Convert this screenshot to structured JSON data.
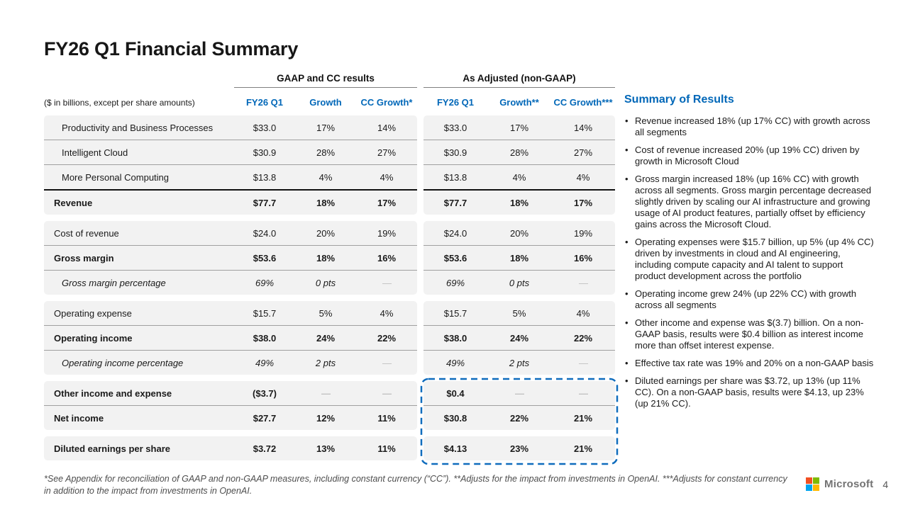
{
  "slide": {
    "title": "FY26 Q1 Financial Summary",
    "page_number": "4",
    "logo_text": "Microsoft",
    "footnote": "*See Appendix for reconciliation of GAAP and non-GAAP measures, including constant currency (“CC”). **Adjusts for the impact from investments in OpenAI. ***Adjusts for constant currency in addition to the impact from investments in OpenAI."
  },
  "colors": {
    "accent_blue": "#0067b8",
    "highlight_dashed_box": "#0f6cbd",
    "row_background": "#f2f2f2",
    "logo_red": "#f25022",
    "logo_green": "#7fba00",
    "logo_blue": "#00a4ef",
    "logo_yellow": "#ffb900"
  },
  "table": {
    "caption": "($ in billions, except per share amounts)",
    "group_headers": [
      "GAAP and CC results",
      "As Adjusted (non-GAAP)"
    ],
    "gaap_columns": [
      "FY26 Q1",
      "Growth",
      "CC Growth*"
    ],
    "nongaap_columns": [
      "FY26 Q1",
      "Growth**",
      "CC Growth***"
    ],
    "groups": [
      {
        "rows": [
          {
            "label": "Productivity and Business Processes",
            "indent": true,
            "gaap": [
              "$33.0",
              "17%",
              "14%"
            ],
            "nongaap": [
              "$33.0",
              "17%",
              "14%"
            ]
          },
          {
            "label": "Intelligent Cloud",
            "indent": true,
            "gaap": [
              "$30.9",
              "28%",
              "27%"
            ],
            "nongaap": [
              "$30.9",
              "28%",
              "27%"
            ]
          },
          {
            "label": "More Personal Computing",
            "indent": true,
            "gaap": [
              "$13.8",
              "4%",
              "4%"
            ],
            "nongaap": [
              "$13.8",
              "4%",
              "4%"
            ]
          },
          {
            "label": "Revenue",
            "bold": true,
            "heavy_top": true,
            "gaap": [
              "$77.7",
              "18%",
              "17%"
            ],
            "nongaap": [
              "$77.7",
              "18%",
              "17%"
            ]
          }
        ]
      },
      {
        "rows": [
          {
            "label": "Cost of revenue",
            "gaap": [
              "$24.0",
              "20%",
              "19%"
            ],
            "nongaap": [
              "$24.0",
              "20%",
              "19%"
            ]
          },
          {
            "label": "Gross margin",
            "bold": true,
            "gaap": [
              "$53.6",
              "18%",
              "16%"
            ],
            "nongaap": [
              "$53.6",
              "18%",
              "16%"
            ]
          },
          {
            "label": "Gross margin percentage",
            "italic": true,
            "indent": true,
            "gaap": [
              "69%",
              "0 pts",
              "—"
            ],
            "nongaap": [
              "69%",
              "0 pts",
              "—"
            ]
          }
        ]
      },
      {
        "rows": [
          {
            "label": "Operating expense",
            "gaap": [
              "$15.7",
              "5%",
              "4%"
            ],
            "nongaap": [
              "$15.7",
              "5%",
              "4%"
            ]
          },
          {
            "label": "Operating income",
            "bold": true,
            "gaap": [
              "$38.0",
              "24%",
              "22%"
            ],
            "nongaap": [
              "$38.0",
              "24%",
              "22%"
            ]
          },
          {
            "label": "Operating income percentage",
            "italic": true,
            "indent": true,
            "gaap": [
              "49%",
              "2 pts",
              "—"
            ],
            "nongaap": [
              "49%",
              "2 pts",
              "—"
            ]
          }
        ]
      },
      {
        "rows": [
          {
            "label": "Other income and expense",
            "bold": true,
            "gaap": [
              "($3.7)",
              "—",
              "—"
            ],
            "nongaap": [
              "$0.4",
              "—",
              "—"
            ]
          },
          {
            "label": "Net income",
            "bold": true,
            "gaap": [
              "$27.7",
              "12%",
              "11%"
            ],
            "nongaap": [
              "$30.8",
              "22%",
              "21%"
            ]
          }
        ]
      },
      {
        "rows": [
          {
            "label": "Diluted earnings per share",
            "bold": true,
            "gaap": [
              "$3.72",
              "13%",
              "11%"
            ],
            "nongaap": [
              "$4.13",
              "23%",
              "21%"
            ]
          }
        ]
      }
    ]
  },
  "summary": {
    "heading": "Summary of Results",
    "bullets": [
      "Revenue increased 18% (up 17% CC) with growth across all segments",
      "Cost of revenue increased 20% (up 19% CC) driven by growth in Microsoft Cloud",
      "Gross margin increased 18% (up 16% CC) with growth across all segments. Gross margin percentage decreased slightly driven by scaling our AI infrastructure and growing usage of AI product features, partially offset by efficiency gains across the Microsoft Cloud.",
      "Operating expenses were $15.7 billion, up 5% (up 4% CC) driven by investments in cloud and AI engineering, including compute capacity and AI talent to support product development across the portfolio",
      "Operating income grew 24% (up 22% CC) with growth across all segments",
      "Other income and expense was $(3.7) billion. On a non-GAAP basis, results were $0.4 billion as interest income more than offset interest expense.",
      "Effective tax rate was 19% and 20% on a non-GAAP basis",
      "Diluted earnings per share was $3.72, up 13% (up 11% CC). On a non-GAAP basis, results were $4.13, up 23% (up 21% CC)."
    ]
  }
}
